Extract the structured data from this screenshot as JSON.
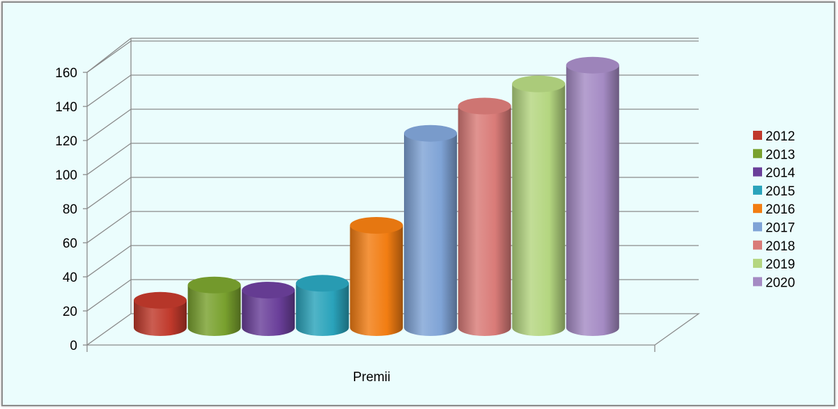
{
  "chart_data": {
    "type": "bar",
    "style": "3d-cylinder",
    "categories": [
      "Premii"
    ],
    "series": [
      {
        "name": "2012",
        "values": [
          16
        ],
        "color": "#c0392b"
      },
      {
        "name": "2013",
        "values": [
          25
        ],
        "color": "#79a12e"
      },
      {
        "name": "2014",
        "values": [
          22
        ],
        "color": "#6a3f9a"
      },
      {
        "name": "2015",
        "values": [
          26
        ],
        "color": "#2aa3bb"
      },
      {
        "name": "2016",
        "values": [
          60
        ],
        "color": "#f27d12"
      },
      {
        "name": "2017",
        "values": [
          114
        ],
        "color": "#7fa3d6"
      },
      {
        "name": "2018",
        "values": [
          130
        ],
        "color": "#d97b78"
      },
      {
        "name": "2019",
        "values": [
          143
        ],
        "color": "#b4d680"
      },
      {
        "name": "2020",
        "values": [
          154
        ],
        "color": "#a58bc4"
      }
    ],
    "ylim": [
      0,
      160
    ],
    "yticks": [
      "0",
      "20",
      "40",
      "60",
      "80",
      "100",
      "120",
      "140",
      "160"
    ],
    "grid": true,
    "legend_position": "right",
    "background": "#ebfdfd"
  }
}
